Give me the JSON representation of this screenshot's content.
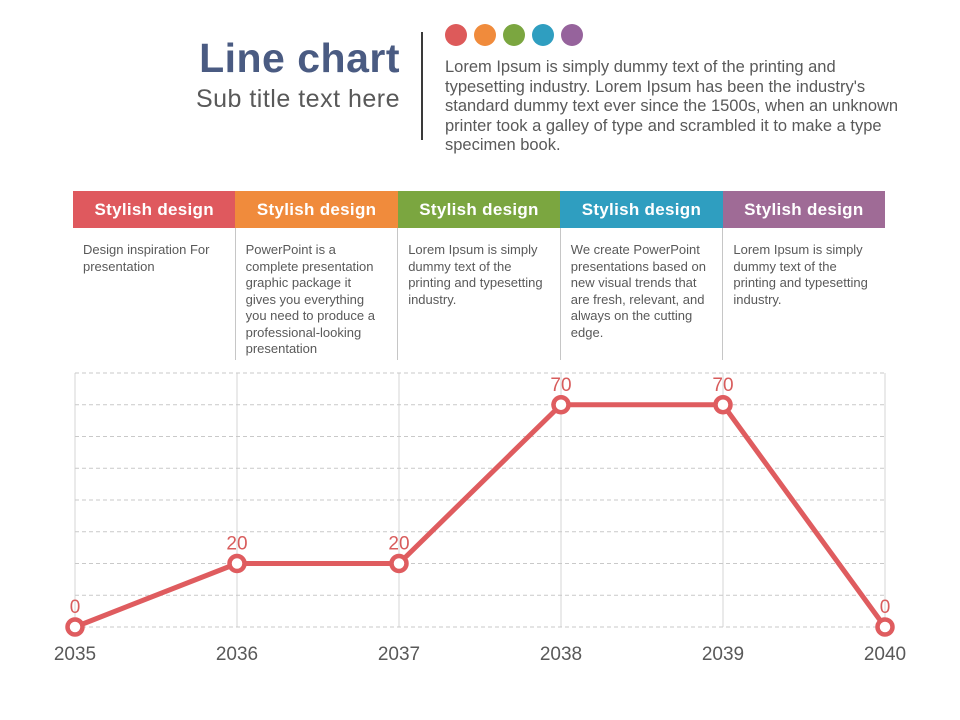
{
  "header": {
    "title": "Line chart",
    "subtitle": "Sub title text here",
    "paragraph": "Lorem Ipsum is simply dummy text of the printing and typesetting industry. Lorem Ipsum has been the industry's standard dummy text ever since the 1500s, when an unknown printer took a galley of type and scrambled it to make a type specimen book.",
    "dot_colors": [
      "#DD5A5A",
      "#F08B3C",
      "#7BA640",
      "#2F9EC0",
      "#96639C"
    ]
  },
  "features": {
    "items": [
      {
        "header": "Stylish design",
        "color": "#DF595E",
        "body": "Design inspiration For presentation"
      },
      {
        "header": "Stylish design",
        "color": "#F08B3C",
        "body": "PowerPoint is a complete presentation graphic package it gives you everything you need to produce a professional-looking presentation"
      },
      {
        "header": "Stylish design",
        "color": "#7BA640",
        "body": "Lorem Ipsum is simply dummy text of the printing and typesetting industry."
      },
      {
        "header": "Stylish design",
        "color": "#2F9EC0",
        "body": "We create PowerPoint presentations based on new visual trends that are fresh, relevant, and always on the cutting edge."
      },
      {
        "header": "Stylish design",
        "color": "#9F6B96",
        "body": "Lorem Ipsum is simply dummy text of the printing and typesetting industry."
      }
    ]
  },
  "chart_data": {
    "type": "line",
    "title": "",
    "xlabel": "",
    "ylabel": "",
    "categories": [
      "2035",
      "2036",
      "2037",
      "2038",
      "2039",
      "2040"
    ],
    "values": [
      0,
      20,
      20,
      70,
      70,
      0
    ],
    "data_labels": [
      "0",
      "20",
      "20",
      "70",
      "70",
      "0"
    ],
    "ylim": [
      0,
      80
    ],
    "grid_step": 10,
    "grid": "horizontal dashed, vertical solid at categories",
    "legend": "none",
    "series_color": "#DF5C5F",
    "marker_fill": "#FFFFFF",
    "label_color": "#D85C5C",
    "tick_color": "#595959",
    "h_grid_color": "#C9C9C9",
    "v_grid_color": "#D4D4D4"
  }
}
